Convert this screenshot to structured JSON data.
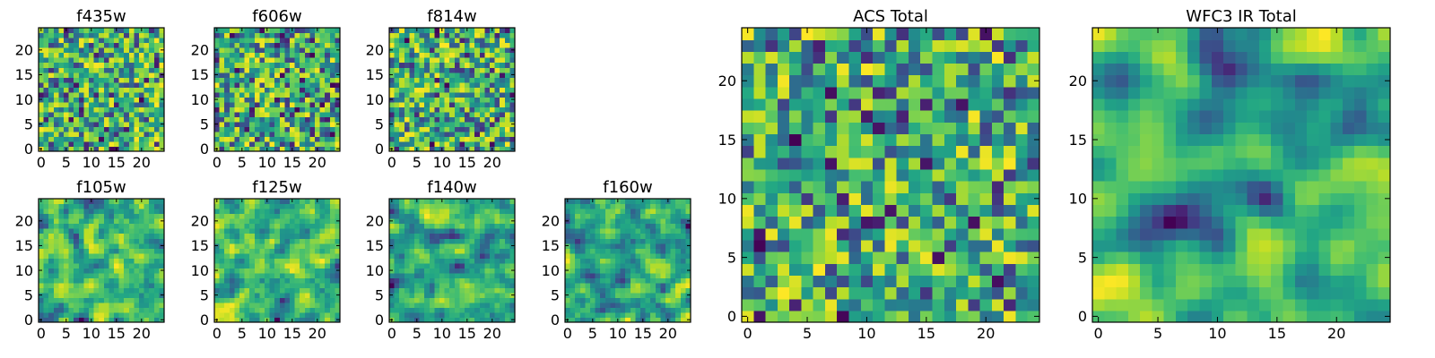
{
  "chart_data": [
    {
      "type": "heatmap",
      "title": "f435w",
      "xlim": [
        0,
        24
      ],
      "ylim": [
        0,
        24
      ],
      "xticks": [
        0,
        5,
        10,
        15,
        20
      ],
      "yticks": [
        0,
        5,
        10,
        15,
        20
      ],
      "colormap": "viridis",
      "seed": 11,
      "smooth": 0,
      "grid": false
    },
    {
      "type": "heatmap",
      "title": "f606w",
      "xlim": [
        0,
        24
      ],
      "ylim": [
        0,
        24
      ],
      "xticks": [
        0,
        5,
        10,
        15,
        20
      ],
      "yticks": [
        0,
        5,
        10,
        15,
        20
      ],
      "colormap": "viridis",
      "seed": 23,
      "smooth": 0,
      "grid": false
    },
    {
      "type": "heatmap",
      "title": "f814w",
      "xlim": [
        0,
        24
      ],
      "ylim": [
        0,
        24
      ],
      "xticks": [
        0,
        5,
        10,
        15,
        20
      ],
      "yticks": [
        0,
        5,
        10,
        15,
        20
      ],
      "colormap": "viridis",
      "seed": 37,
      "smooth": 0,
      "grid": false
    },
    {
      "type": "heatmap",
      "title": "f105w",
      "xlim": [
        0,
        24
      ],
      "ylim": [
        0,
        24
      ],
      "xticks": [
        0,
        5,
        10,
        15,
        20
      ],
      "yticks": [
        0,
        5,
        10,
        15,
        20
      ],
      "colormap": "viridis",
      "seed": 41,
      "smooth": 1,
      "grid": false
    },
    {
      "type": "heatmap",
      "title": "f125w",
      "xlim": [
        0,
        24
      ],
      "ylim": [
        0,
        24
      ],
      "xticks": [
        0,
        5,
        10,
        15,
        20
      ],
      "yticks": [
        0,
        5,
        10,
        15,
        20
      ],
      "colormap": "viridis",
      "seed": 53,
      "smooth": 1,
      "grid": false
    },
    {
      "type": "heatmap",
      "title": "f140w",
      "xlim": [
        0,
        24
      ],
      "ylim": [
        0,
        24
      ],
      "xticks": [
        0,
        5,
        10,
        15,
        20
      ],
      "yticks": [
        0,
        5,
        10,
        15,
        20
      ],
      "colormap": "viridis",
      "seed": 67,
      "smooth": 1,
      "grid": false
    },
    {
      "type": "heatmap",
      "title": "f160w",
      "xlim": [
        0,
        24
      ],
      "ylim": [
        0,
        24
      ],
      "xticks": [
        0,
        5,
        10,
        15,
        20
      ],
      "yticks": [
        0,
        5,
        10,
        15,
        20
      ],
      "colormap": "viridis",
      "seed": 79,
      "smooth": 1,
      "grid": false
    },
    {
      "type": "heatmap",
      "title": "ACS Total",
      "xlim": [
        0,
        24
      ],
      "ylim": [
        0,
        24
      ],
      "xticks": [
        0,
        5,
        10,
        15,
        20
      ],
      "yticks": [
        0,
        5,
        10,
        15,
        20
      ],
      "colormap": "viridis",
      "seed": 97,
      "smooth": 0,
      "grid": false
    },
    {
      "type": "heatmap",
      "title": "WFC3 IR Total",
      "xlim": [
        0,
        24
      ],
      "ylim": [
        0,
        24
      ],
      "xticks": [
        0,
        5,
        10,
        15,
        20
      ],
      "yticks": [
        0,
        5,
        10,
        15,
        20
      ],
      "colormap": "viridis",
      "seed": 113,
      "smooth": 2,
      "grid": false
    }
  ]
}
